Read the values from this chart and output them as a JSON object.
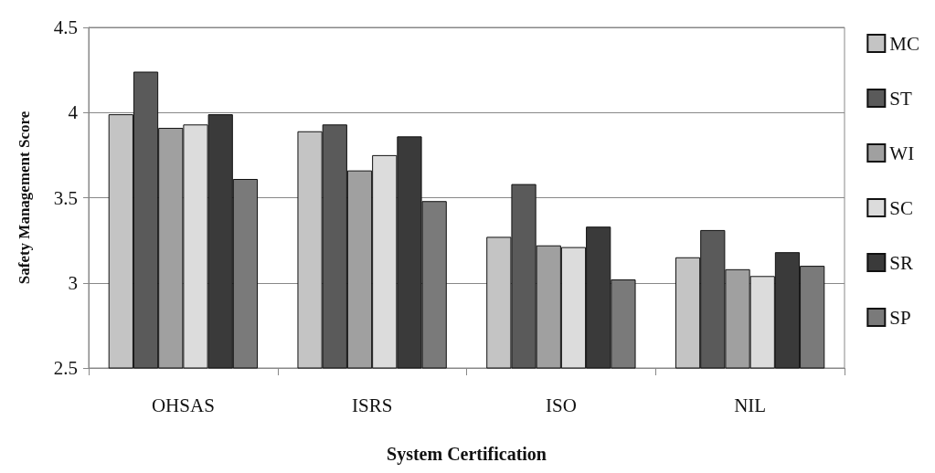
{
  "chart_data": {
    "type": "bar",
    "xlabel": "System Certification",
    "ylabel": "Safety Management Score",
    "categories": [
      "OHSAS",
      "ISRS",
      "ISO",
      "NIL"
    ],
    "series": [
      {
        "name": "MC",
        "color": "#c4c4c4",
        "values": [
          3.99,
          3.89,
          3.27,
          3.15
        ]
      },
      {
        "name": "ST",
        "color": "#5a5a5a",
        "values": [
          4.24,
          3.93,
          3.58,
          3.31
        ]
      },
      {
        "name": "WI",
        "color": "#a0a0a0",
        "values": [
          3.91,
          3.66,
          3.22,
          3.08
        ]
      },
      {
        "name": "SC",
        "color": "#dcdcdc",
        "values": [
          3.93,
          3.75,
          3.21,
          3.04
        ]
      },
      {
        "name": "SR",
        "color": "#3a3a3a",
        "values": [
          3.99,
          3.86,
          3.33,
          3.18
        ]
      },
      {
        "name": "SP",
        "color": "#7a7a7a",
        "values": [
          3.61,
          3.48,
          3.02,
          3.1
        ]
      }
    ],
    "ylim": [
      2.5,
      4.5
    ],
    "yticks": [
      2.5,
      3,
      3.5,
      4,
      4.5
    ],
    "grid": "y",
    "legend": "right"
  }
}
